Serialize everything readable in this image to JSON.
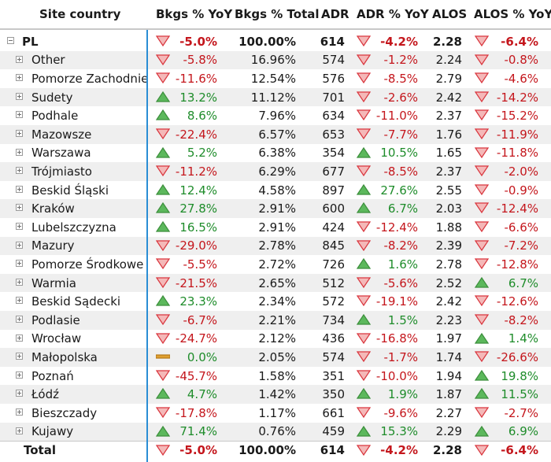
{
  "columns": {
    "site_country": "Site country",
    "bkgs_yoy": "Bkgs % YoY",
    "bkgs_total": "Bkgs % Total",
    "adr": "ADR",
    "adr_yoy": "ADR % YoY",
    "alos": "ALOS",
    "alos_yoy": "ALOS % YoY"
  },
  "colors": {
    "down": "#d9363e",
    "up": "#5cb85c",
    "flat": "#e0a030",
    "accent": "#2a8dd4"
  },
  "parent": {
    "name": "PL",
    "bkgs_yoy": "-5.0%",
    "bkgs_yoy_dir": "down",
    "bkgs_total": "100.00%",
    "adr": "614",
    "adr_yoy": "-4.2%",
    "adr_yoy_dir": "down",
    "alos": "2.28",
    "alos_yoy": "-6.4%",
    "alos_yoy_dir": "down"
  },
  "rows": [
    {
      "name": "Other",
      "bkgs_yoy": "-5.8%",
      "bkgs_yoy_dir": "down",
      "bkgs_total": "16.96%",
      "adr": "574",
      "adr_yoy": "-1.2%",
      "adr_yoy_dir": "down",
      "alos": "2.24",
      "alos_yoy": "-0.8%",
      "alos_yoy_dir": "down"
    },
    {
      "name": "Pomorze Zachodnie",
      "bkgs_yoy": "-11.6%",
      "bkgs_yoy_dir": "down",
      "bkgs_total": "12.54%",
      "adr": "576",
      "adr_yoy": "-8.5%",
      "adr_yoy_dir": "down",
      "alos": "2.79",
      "alos_yoy": "-4.6%",
      "alos_yoy_dir": "down"
    },
    {
      "name": "Sudety",
      "bkgs_yoy": "13.2%",
      "bkgs_yoy_dir": "up",
      "bkgs_total": "11.12%",
      "adr": "701",
      "adr_yoy": "-2.6%",
      "adr_yoy_dir": "down",
      "alos": "2.42",
      "alos_yoy": "-14.2%",
      "alos_yoy_dir": "down"
    },
    {
      "name": "Podhale",
      "bkgs_yoy": "8.6%",
      "bkgs_yoy_dir": "up",
      "bkgs_total": "7.96%",
      "adr": "634",
      "adr_yoy": "-11.0%",
      "adr_yoy_dir": "down",
      "alos": "2.37",
      "alos_yoy": "-15.2%",
      "alos_yoy_dir": "down"
    },
    {
      "name": "Mazowsze",
      "bkgs_yoy": "-22.4%",
      "bkgs_yoy_dir": "down",
      "bkgs_total": "6.57%",
      "adr": "653",
      "adr_yoy": "-7.7%",
      "adr_yoy_dir": "down",
      "alos": "1.76",
      "alos_yoy": "-11.9%",
      "alos_yoy_dir": "down"
    },
    {
      "name": "Warszawa",
      "bkgs_yoy": "5.2%",
      "bkgs_yoy_dir": "up",
      "bkgs_total": "6.38%",
      "adr": "354",
      "adr_yoy": "10.5%",
      "adr_yoy_dir": "up",
      "alos": "1.65",
      "alos_yoy": "-11.8%",
      "alos_yoy_dir": "down"
    },
    {
      "name": "Trójmiasto",
      "bkgs_yoy": "-11.2%",
      "bkgs_yoy_dir": "down",
      "bkgs_total": "6.29%",
      "adr": "677",
      "adr_yoy": "-8.5%",
      "adr_yoy_dir": "down",
      "alos": "2.37",
      "alos_yoy": "-2.0%",
      "alos_yoy_dir": "down"
    },
    {
      "name": "Beskid Śląski",
      "bkgs_yoy": "12.4%",
      "bkgs_yoy_dir": "up",
      "bkgs_total": "4.58%",
      "adr": "897",
      "adr_yoy": "27.6%",
      "adr_yoy_dir": "up",
      "alos": "2.55",
      "alos_yoy": "-0.9%",
      "alos_yoy_dir": "down"
    },
    {
      "name": "Kraków",
      "bkgs_yoy": "27.8%",
      "bkgs_yoy_dir": "up",
      "bkgs_total": "2.91%",
      "adr": "600",
      "adr_yoy": "6.7%",
      "adr_yoy_dir": "up",
      "alos": "2.03",
      "alos_yoy": "-12.4%",
      "alos_yoy_dir": "down"
    },
    {
      "name": "Lubelszczyzna",
      "bkgs_yoy": "16.5%",
      "bkgs_yoy_dir": "up",
      "bkgs_total": "2.91%",
      "adr": "424",
      "adr_yoy": "-12.4%",
      "adr_yoy_dir": "down",
      "alos": "1.88",
      "alos_yoy": "-6.6%",
      "alos_yoy_dir": "down"
    },
    {
      "name": "Mazury",
      "bkgs_yoy": "-29.0%",
      "bkgs_yoy_dir": "down",
      "bkgs_total": "2.78%",
      "adr": "845",
      "adr_yoy": "-8.2%",
      "adr_yoy_dir": "down",
      "alos": "2.39",
      "alos_yoy": "-7.2%",
      "alos_yoy_dir": "down"
    },
    {
      "name": "Pomorze Środkowe",
      "bkgs_yoy": "-5.5%",
      "bkgs_yoy_dir": "down",
      "bkgs_total": "2.72%",
      "adr": "726",
      "adr_yoy": "1.6%",
      "adr_yoy_dir": "up",
      "alos": "2.78",
      "alos_yoy": "-12.8%",
      "alos_yoy_dir": "down"
    },
    {
      "name": "Warmia",
      "bkgs_yoy": "-21.5%",
      "bkgs_yoy_dir": "down",
      "bkgs_total": "2.65%",
      "adr": "512",
      "adr_yoy": "-5.6%",
      "adr_yoy_dir": "down",
      "alos": "2.52",
      "alos_yoy": "6.7%",
      "alos_yoy_dir": "up"
    },
    {
      "name": "Beskid Sądecki",
      "bkgs_yoy": "23.3%",
      "bkgs_yoy_dir": "up",
      "bkgs_total": "2.34%",
      "adr": "572",
      "adr_yoy": "-19.1%",
      "adr_yoy_dir": "down",
      "alos": "2.42",
      "alos_yoy": "-12.6%",
      "alos_yoy_dir": "down"
    },
    {
      "name": "Podlasie",
      "bkgs_yoy": "-6.7%",
      "bkgs_yoy_dir": "down",
      "bkgs_total": "2.21%",
      "adr": "734",
      "adr_yoy": "1.5%",
      "adr_yoy_dir": "up",
      "alos": "2.23",
      "alos_yoy": "-8.2%",
      "alos_yoy_dir": "down"
    },
    {
      "name": "Wrocław",
      "bkgs_yoy": "-24.7%",
      "bkgs_yoy_dir": "down",
      "bkgs_total": "2.12%",
      "adr": "436",
      "adr_yoy": "-16.8%",
      "adr_yoy_dir": "down",
      "alos": "1.97",
      "alos_yoy": "1.4%",
      "alos_yoy_dir": "up"
    },
    {
      "name": "Małopolska",
      "bkgs_yoy": "0.0%",
      "bkgs_yoy_dir": "flat",
      "bkgs_total": "2.05%",
      "adr": "574",
      "adr_yoy": "-1.7%",
      "adr_yoy_dir": "down",
      "alos": "1.74",
      "alos_yoy": "-26.6%",
      "alos_yoy_dir": "down"
    },
    {
      "name": "Poznań",
      "bkgs_yoy": "-45.7%",
      "bkgs_yoy_dir": "down",
      "bkgs_total": "1.58%",
      "adr": "351",
      "adr_yoy": "-10.0%",
      "adr_yoy_dir": "down",
      "alos": "1.94",
      "alos_yoy": "19.8%",
      "alos_yoy_dir": "up"
    },
    {
      "name": "Łódź",
      "bkgs_yoy": "4.7%",
      "bkgs_yoy_dir": "up",
      "bkgs_total": "1.42%",
      "adr": "350",
      "adr_yoy": "1.9%",
      "adr_yoy_dir": "up",
      "alos": "1.87",
      "alos_yoy": "11.5%",
      "alos_yoy_dir": "up"
    },
    {
      "name": "Bieszczady",
      "bkgs_yoy": "-17.8%",
      "bkgs_yoy_dir": "down",
      "bkgs_total": "1.17%",
      "adr": "661",
      "adr_yoy": "-9.6%",
      "adr_yoy_dir": "down",
      "alos": "2.27",
      "alos_yoy": "-2.7%",
      "alos_yoy_dir": "down"
    },
    {
      "name": "Kujawy",
      "bkgs_yoy": "71.4%",
      "bkgs_yoy_dir": "up",
      "bkgs_total": "0.76%",
      "adr": "459",
      "adr_yoy": "15.3%",
      "adr_yoy_dir": "up",
      "alos": "2.29",
      "alos_yoy": "6.9%",
      "alos_yoy_dir": "up"
    }
  ],
  "total": {
    "name": "Total",
    "bkgs_yoy": "-5.0%",
    "bkgs_yoy_dir": "down",
    "bkgs_total": "100.00%",
    "adr": "614",
    "adr_yoy": "-4.2%",
    "adr_yoy_dir": "down",
    "alos": "2.28",
    "alos_yoy": "-6.4%",
    "alos_yoy_dir": "down"
  }
}
